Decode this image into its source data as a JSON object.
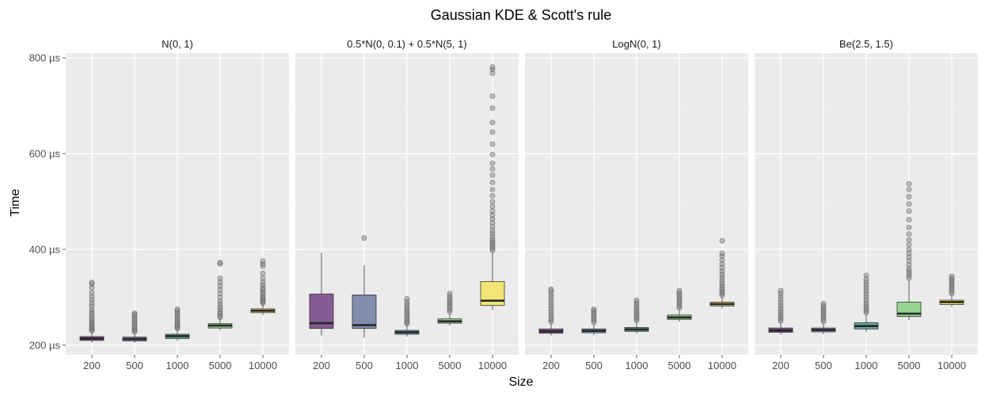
{
  "chart_data": {
    "type": "box",
    "title": "Gaussian KDE & Scott's rule",
    "xlabel": "Size",
    "ylabel": "Time",
    "y_unit": "µs",
    "ylim": [
      180,
      810
    ],
    "y_ticks": [
      200,
      400,
      600,
      800
    ],
    "y_tick_labels": [
      "200 µs",
      "400 µs",
      "600 µs",
      "800 µs"
    ],
    "categories": [
      "200",
      "500",
      "1000",
      "5000",
      "10000"
    ],
    "fill_colors": [
      "#7b4f8a",
      "#7785a8",
      "#5aa39e",
      "#8fd18a",
      "#f2e36a"
    ],
    "grid": true,
    "facets": [
      {
        "label": "N(0, 1)",
        "boxes": [
          {
            "q1": 210,
            "median": 214,
            "q3": 218,
            "whisker_low": 205,
            "whisker_high": 228,
            "outliers": [
              230,
              233,
              236,
              239,
              242,
              245,
              248,
              252,
              256,
              260,
              265,
              270,
              275,
              282,
              288,
              295,
              302,
              310,
              320,
              328,
              331
            ]
          },
          {
            "q1": 209,
            "median": 213,
            "q3": 217,
            "whisker_low": 205,
            "whisker_high": 226,
            "outliers": [
              228,
              231,
              234,
              237,
              240,
              244,
              248,
              252,
              256,
              260,
              264,
              267
            ]
          },
          {
            "q1": 214,
            "median": 219,
            "q3": 223,
            "whisker_low": 209,
            "whisker_high": 233,
            "outliers": [
              235,
              238,
              241,
              244,
              248,
              252,
              256,
              260,
              264,
              268,
              272,
              275
            ]
          },
          {
            "q1": 236,
            "median": 241,
            "q3": 245,
            "whisker_low": 231,
            "whisker_high": 256,
            "outliers": [
              258,
              262,
              266,
              270,
              275,
              280,
              286,
              292,
              300,
              308,
              316,
              324,
              332,
              340,
              370,
              373
            ]
          },
          {
            "q1": 268,
            "median": 272,
            "q3": 276,
            "whisker_low": 263,
            "whisker_high": 286,
            "outliers": [
              288,
              291,
              294,
              297,
              300,
              304,
              308,
              312,
              316,
              320,
              326,
              332,
              340,
              350,
              365,
              370,
              376
            ]
          }
        ]
      },
      {
        "label": "0.5*N(0, 0.1) + 0.5*N(5, 1)",
        "boxes": [
          {
            "q1": 235,
            "median": 246,
            "q3": 307,
            "whisker_low": 220,
            "whisker_high": 393,
            "outliers": []
          },
          {
            "q1": 235,
            "median": 242,
            "q3": 305,
            "whisker_low": 216,
            "whisker_high": 367,
            "outliers": [
              424
            ]
          },
          {
            "q1": 223,
            "median": 227,
            "q3": 231,
            "whisker_low": 218,
            "whisker_high": 242,
            "outliers": [
              245,
              248,
              252,
              256,
              260,
              264,
              268,
              272,
              276,
              281,
              286,
              291,
              297
            ]
          },
          {
            "q1": 246,
            "median": 250,
            "q3": 255,
            "whisker_low": 241,
            "whisker_high": 267,
            "outliers": [
              270,
              274,
              278,
              282,
              286,
              290,
              294,
              298,
              303,
              308
            ]
          },
          {
            "q1": 283,
            "median": 293,
            "q3": 333,
            "whisker_low": 274,
            "whisker_high": 395,
            "outliers": [
              398,
              402,
              406,
              410,
              414,
              418,
              422,
              428,
              434,
              440,
              448,
              456,
              464,
              472,
              480,
              490,
              500,
              512,
              525,
              540,
              555,
              568,
              580,
              598,
              620,
              645,
              665,
              695,
              720,
              768,
              776,
              781
            ]
          }
        ]
      },
      {
        "label": "LogN(0, 1)",
        "boxes": [
          {
            "q1": 225,
            "median": 229,
            "q3": 234,
            "whisker_low": 220,
            "whisker_high": 246,
            "outliers": [
              249,
              253,
              257,
              262,
              267,
              272,
              277,
              283,
              289,
              295,
              301,
              307,
              313,
              317
            ]
          },
          {
            "q1": 226,
            "median": 230,
            "q3": 234,
            "whisker_low": 221,
            "whisker_high": 245,
            "outliers": [
              248,
              252,
              256,
              260,
              264,
              268,
              272,
              275
            ]
          },
          {
            "q1": 229,
            "median": 233,
            "q3": 237,
            "whisker_low": 224,
            "whisker_high": 249,
            "outliers": [
              252,
              256,
              260,
              264,
              268,
              272,
              276,
              280,
              285,
              290,
              294
            ]
          },
          {
            "q1": 254,
            "median": 258,
            "q3": 263,
            "whisker_low": 249,
            "whisker_high": 275,
            "outliers": [
              278,
              282,
              286,
              290,
              294,
              298,
              302,
              306,
              310,
              314
            ]
          },
          {
            "q1": 282,
            "median": 286,
            "q3": 290,
            "whisker_low": 277,
            "whisker_high": 301,
            "outliers": [
              304,
              308,
              312,
              316,
              320,
              325,
              330,
              336,
              342,
              348,
              355,
              362,
              370,
              378,
              386,
              392,
              418
            ]
          }
        ]
      },
      {
        "label": "Be(2.5, 1.5)",
        "boxes": [
          {
            "q1": 227,
            "median": 231,
            "q3": 236,
            "whisker_low": 222,
            "whisker_high": 248,
            "outliers": [
              251,
              255,
              259,
              263,
              268,
              273,
              278,
              284,
              290,
              296,
              302,
              308,
              314
            ]
          },
          {
            "q1": 228,
            "median": 232,
            "q3": 236,
            "whisker_low": 223,
            "whisker_high": 247,
            "outliers": [
              250,
              254,
              258,
              262,
              266,
              270,
              274,
              278,
              282,
              287
            ]
          },
          {
            "q1": 234,
            "median": 240,
            "q3": 247,
            "whisker_low": 228,
            "whisker_high": 265,
            "outliers": [
              268,
              272,
              276,
              280,
              285,
              290,
              296,
              302,
              308,
              314,
              320,
              326,
              332,
              338,
              346
            ]
          },
          {
            "q1": 260,
            "median": 266,
            "q3": 290,
            "whisker_low": 253,
            "whisker_high": 335,
            "outliers": [
              340,
              345,
              350,
              355,
              360,
              368,
              376,
              384,
              392,
              400,
              410,
              420,
              432,
              446,
              462,
              480,
              495,
              510,
              525,
              537
            ]
          },
          {
            "q1": 285,
            "median": 290,
            "q3": 294,
            "whisker_low": 280,
            "whisker_high": 305,
            "outliers": [
              308,
              312,
              316,
              320,
              324,
              328,
              332,
              336,
              340,
              344
            ]
          }
        ]
      }
    ]
  }
}
